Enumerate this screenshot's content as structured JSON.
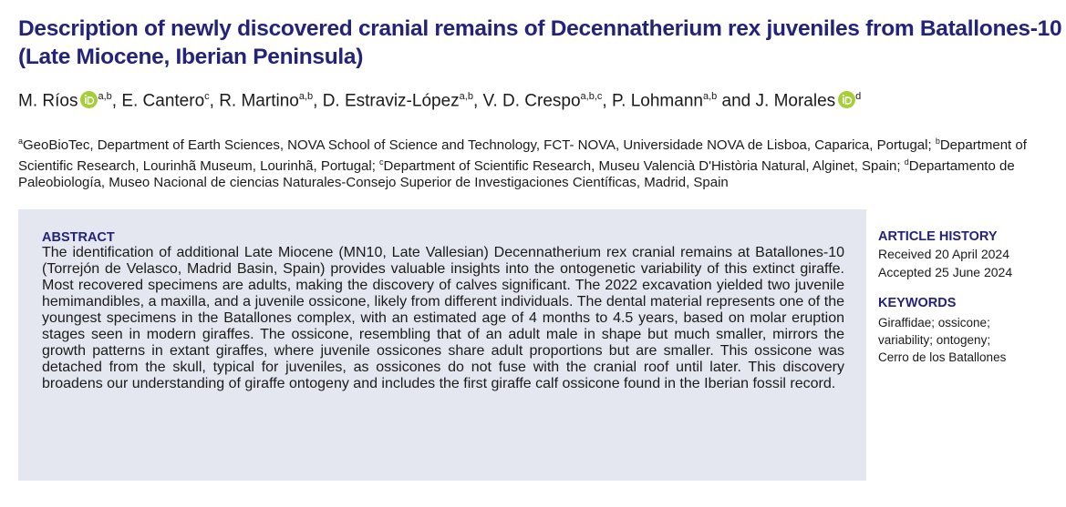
{
  "header": {
    "title": "Description of newly discovered cranial remains of Decennatherium rex juveniles from Batallones-10 (Late Miocene, Iberian Peninsula)",
    "authors": [
      {
        "name": "M. Ríos",
        "affil": "a,b",
        "orcid": true,
        "after": ", "
      },
      {
        "name": "E. Cantero",
        "affil": "c",
        "after": ", "
      },
      {
        "name": "R. Martino",
        "affil": "a,b",
        "after": ", "
      },
      {
        "name": "D. Estraviz-López",
        "affil": "a,b",
        "after": ", "
      },
      {
        "name": "V. D. Crespo",
        "affil": "a,b,c",
        "after": ", "
      },
      {
        "name": "P. Lohmann",
        "affil": "a,b",
        "after": " and "
      },
      {
        "name": "J. Morales",
        "affil": "d",
        "orcid": true
      }
    ],
    "affiliations": [
      {
        "letter": "a",
        "text": "GeoBioTec, Department of Earth Sciences, NOVA School of Science and Technology, FCT- NOVA, Universidade NOVA de Lisboa, Caparica, Portugal;"
      },
      {
        "letter": "b",
        "text": "Department of Scientific Research, Lourinhã Museum, Lourinhã, Portugal;"
      },
      {
        "letter": "c",
        "text": "Department of Scientific Research, Museu Valencià D'Història Natural, Alginet, Spain;"
      },
      {
        "letter": "d",
        "text": "Departamento de Paleobiología, Museo Nacional de ciencias Naturales-Consejo Superior de Investigaciones Científicas, Madrid, Spain"
      }
    ]
  },
  "abstract": {
    "heading": "ABSTRACT",
    "text": "The identification of additional Late Miocene (MN10, Late Vallesian) Decennatherium rex cranial remains at Batallones-10 (Torrejón de Velasco, Madrid Basin, Spain) provides valuable insights into the ontogenetic variability of this extinct giraffe. Most recovered specimens are adults, making the discovery of calves significant. The 2022 excavation yielded two juvenile hemimandibles, a maxilla, and a juvenile ossicone, likely from different individuals. The dental material represents one of the youngest specimens in the Batallones complex, with an estimated age of 4 months to 4.5 years, based on molar eruption stages seen in modern giraffes. The ossicone, resembling that of an adult male in shape but much smaller, mirrors the growth patterns in extant giraffes, where juvenile ossicones share adult proportions but are smaller. This ossicone was detached from the skull, typical for juveniles, as ossicones do not fuse with the cranial roof until later. This discovery broadens our understanding of giraffe ontogeny and includes the first giraffe calf ossicone found in the Iberian fossil record."
  },
  "sidebar": {
    "history_heading": "ARTICLE HISTORY",
    "received": "Received 20 April 2024",
    "accepted": "Accepted 25 June 2024",
    "keywords_heading": "KEYWORDS",
    "keywords": "Giraffidae; ossicone; variability; ontogeny; Cerro de los Batallones"
  }
}
